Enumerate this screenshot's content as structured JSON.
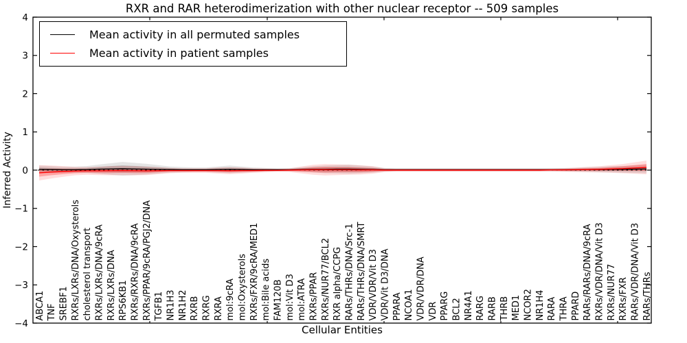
{
  "chart_data": {
    "type": "line",
    "title": "RXR and RAR heterodimerization with other nuclear receptor -- 509 samples",
    "xlabel": "Cellular Entities",
    "ylabel": "Inferred Activity",
    "ylim": [
      -4,
      4
    ],
    "yticks": [
      4,
      3,
      2,
      1,
      0,
      -1,
      -2,
      -3,
      -4
    ],
    "ytick_labels": [
      "4",
      "3",
      "2",
      "1",
      "0",
      "−1",
      "−2",
      "−3",
      "−4"
    ],
    "grid": false,
    "legend_position": "upper left",
    "zero_reference_line": {
      "style": "dashed",
      "color": "#000000",
      "y": 0
    },
    "categories": [
      "ABCA1",
      "TNF",
      "SREBF1",
      "RXRs/LXRs/DNA/Oxysterols",
      "cholesterol transport",
      "RXRs/LXRs/DNA/9cRA",
      "RXRs/LXRs/DNA",
      "RPS6KB1",
      "RXRs/RXRs/DNA/9cRA",
      "RXRs/PPAR/9cRA/PGJ2/DNA",
      "TGFB1",
      "NR1H3",
      "NR1H2",
      "RXRB",
      "RXRG",
      "RXRA",
      "mol:9cRA",
      "mol:Oxysterols",
      "RXRs/FXR/9cRA/MED1",
      "mol:Bile acids",
      "FAM120B",
      "mol:Vit D3",
      "mol:ATRA",
      "RXRs/PPAR",
      "RXRs/NUR77/BCL2",
      "RXR alpha/CCPG",
      "RARs/THRs/DNA/Src-1",
      "RARs/THRs/DNA/SMRT",
      "VDR/VDR/Vit D3",
      "VDR/Vit D3/DNA",
      "PPARA",
      "NCOA1",
      "VDR/VDR/DNA",
      "VDR",
      "PPARG",
      "BCL2",
      "NR4A1",
      "RARG",
      "RARB",
      "THRB",
      "MED1",
      "NCOR2",
      "NR1H4",
      "RARA",
      "THRA",
      "PPARD",
      "RARs/RARs/DNA/9cRA",
      "RXRs/VDR/DNA/Vit D3",
      "RXRs/NUR77",
      "RXRs/FXR",
      "RARs/VDR/DNA/Vit D3",
      "RARs/THRs"
    ],
    "series": [
      {
        "name": "Mean activity in all permuted samples",
        "color": "#000000",
        "values": [
          0.02,
          0.015,
          0.01,
          0.01,
          0.015,
          0.025,
          0.03,
          0.035,
          0.03,
          0.025,
          0.02,
          0.015,
          0.01,
          0.01,
          0.01,
          0.015,
          0.02,
          0.015,
          0.01,
          0.01,
          0.01,
          0.01,
          0.015,
          0.02,
          0.02,
          0.025,
          0.025,
          0.02,
          0.015,
          0.01,
          0.01,
          0.01,
          0.01,
          0.01,
          0.01,
          0.01,
          0.01,
          0.01,
          0.01,
          0.01,
          0.01,
          0.01,
          0.01,
          0.01,
          0.01,
          0.01,
          0.015,
          0.015,
          0.02,
          0.02,
          0.025,
          0.03
        ],
        "band_halfwidth": [
          0.05,
          0.045,
          0.04,
          0.04,
          0.045,
          0.06,
          0.075,
          0.09,
          0.08,
          0.07,
          0.055,
          0.04,
          0.035,
          0.03,
          0.03,
          0.04,
          0.05,
          0.04,
          0.03,
          0.025,
          0.02,
          0.02,
          0.03,
          0.04,
          0.05,
          0.055,
          0.06,
          0.05,
          0.04,
          0.025,
          0.02,
          0.02,
          0.02,
          0.02,
          0.02,
          0.02,
          0.02,
          0.02,
          0.02,
          0.02,
          0.02,
          0.02,
          0.02,
          0.02,
          0.02,
          0.025,
          0.03,
          0.035,
          0.04,
          0.045,
          0.05,
          0.055
        ]
      },
      {
        "name": "Mean activity in patient samples",
        "color": "#ff0000",
        "values": [
          -0.07,
          -0.05,
          -0.035,
          -0.025,
          -0.02,
          -0.02,
          -0.015,
          -0.01,
          -0.015,
          -0.02,
          -0.015,
          -0.01,
          -0.01,
          -0.01,
          -0.01,
          -0.01,
          -0.015,
          -0.01,
          -0.01,
          -0.005,
          -0.005,
          0,
          0.005,
          0.01,
          0.01,
          0.01,
          0.01,
          0.005,
          0.005,
          0,
          0,
          0,
          0,
          0,
          0,
          0,
          0,
          0,
          0,
          0,
          0,
          0,
          0,
          0.005,
          0.005,
          0.01,
          0.015,
          0.02,
          0.03,
          0.04,
          0.055,
          0.07
        ],
        "band_halfwidth": [
          0.1,
          0.085,
          0.07,
          0.055,
          0.05,
          0.055,
          0.06,
          0.06,
          0.06,
          0.055,
          0.045,
          0.035,
          0.03,
          0.03,
          0.03,
          0.04,
          0.045,
          0.04,
          0.03,
          0.025,
          0.02,
          0.025,
          0.045,
          0.065,
          0.075,
          0.07,
          0.065,
          0.06,
          0.05,
          0.025,
          0.02,
          0.02,
          0.02,
          0.02,
          0.02,
          0.02,
          0.02,
          0.02,
          0.02,
          0.02,
          0.02,
          0.02,
          0.02,
          0.02,
          0.025,
          0.03,
          0.035,
          0.04,
          0.05,
          0.06,
          0.075,
          0.09
        ]
      }
    ]
  }
}
